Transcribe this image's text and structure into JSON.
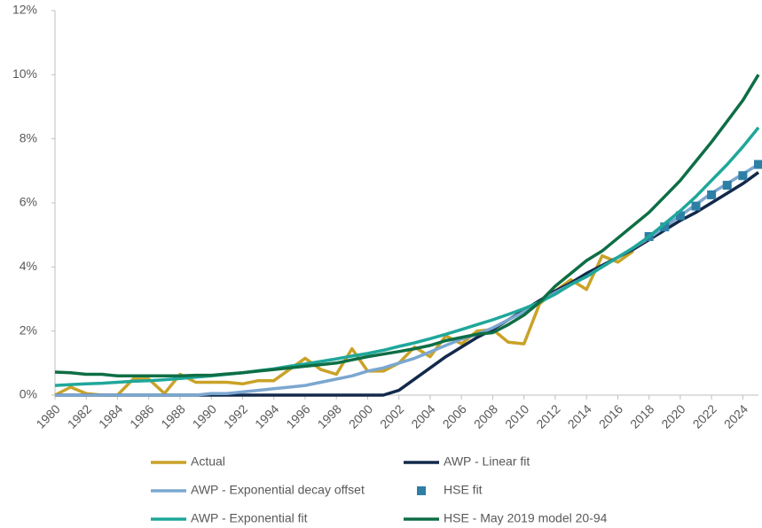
{
  "chart_data": {
    "type": "line",
    "x": [
      1980,
      1981,
      1982,
      1983,
      1984,
      1985,
      1986,
      1987,
      1988,
      1989,
      1990,
      1991,
      1992,
      1993,
      1994,
      1995,
      1996,
      1997,
      1998,
      1999,
      2000,
      2001,
      2002,
      2003,
      2004,
      2005,
      2006,
      2007,
      2008,
      2009,
      2010,
      2011,
      2012,
      2013,
      2014,
      2015,
      2016,
      2017,
      2018,
      2019,
      2020,
      2021,
      2022,
      2023,
      2024,
      2025
    ],
    "xlim": [
      1980,
      2025
    ],
    "xticks": [
      1980,
      1982,
      1984,
      1986,
      1988,
      1990,
      1992,
      1994,
      1996,
      1998,
      2000,
      2002,
      2004,
      2006,
      2008,
      2010,
      2012,
      2014,
      2016,
      2018,
      2020,
      2022,
      2024
    ],
    "ylim": [
      0,
      12
    ],
    "yticks": [
      {
        "value": 0,
        "label": "0%"
      },
      {
        "value": 2,
        "label": "2%"
      },
      {
        "value": 4,
        "label": "4%"
      },
      {
        "value": 6,
        "label": "6%"
      },
      {
        "value": 8,
        "label": "8%"
      },
      {
        "value": 10,
        "label": "10%"
      },
      {
        "value": 12,
        "label": "12%"
      }
    ],
    "grid": false,
    "legend": "bottom",
    "series": [
      {
        "name": "Actual",
        "color": "#c9a227",
        "style": "line",
        "values": [
          0,
          0.25,
          0.05,
          0,
          0,
          0.5,
          0.5,
          0.05,
          0.65,
          0.4,
          0.4,
          0.4,
          0.35,
          0.45,
          0.45,
          0.8,
          1.15,
          0.8,
          0.65,
          1.45,
          0.75,
          0.75,
          1.0,
          1.5,
          1.2,
          1.85,
          1.6,
          2.0,
          2.05,
          1.65,
          1.6,
          2.85,
          3.25,
          3.6,
          3.3,
          4.35,
          4.15,
          4.5,
          null,
          null,
          null,
          null,
          null,
          null,
          null,
          null
        ]
      },
      {
        "name": "AWP - Linear fit",
        "color": "#13294b",
        "style": "line",
        "values": [
          0,
          0,
          0,
          0,
          0,
          0,
          0,
          0,
          0,
          0,
          0,
          0,
          0,
          0,
          0,
          0,
          0,
          0,
          0,
          0,
          0,
          0,
          0.15,
          0.5,
          0.85,
          1.2,
          1.5,
          1.8,
          2.05,
          2.35,
          2.65,
          2.95,
          3.25,
          3.5,
          3.8,
          4.05,
          4.3,
          4.55,
          4.85,
          5.15,
          5.45,
          5.7,
          6.0,
          6.3,
          6.6,
          6.95
        ]
      },
      {
        "name": "AWP - Exponential decay offset",
        "color": "#7ba7d0",
        "style": "line",
        "values": [
          0,
          0,
          0,
          0,
          0,
          0,
          0,
          0,
          0,
          0,
          0.05,
          0.05,
          0.1,
          0.15,
          0.2,
          0.25,
          0.3,
          0.4,
          0.5,
          0.6,
          0.75,
          0.85,
          1.0,
          1.15,
          1.35,
          1.55,
          1.75,
          1.9,
          2.1,
          2.35,
          2.6,
          2.9,
          3.2,
          3.45,
          3.7,
          4.0,
          4.3,
          4.6,
          4.9,
          5.25,
          5.6,
          5.95,
          6.3,
          6.6,
          6.9,
          7.2
        ]
      },
      {
        "name": "HSE fit",
        "color": "#2e7fa6",
        "style": "markers",
        "values": [
          null,
          null,
          null,
          null,
          null,
          null,
          null,
          null,
          null,
          null,
          null,
          null,
          null,
          null,
          null,
          null,
          null,
          null,
          null,
          null,
          null,
          null,
          null,
          null,
          null,
          null,
          null,
          null,
          null,
          null,
          null,
          null,
          null,
          null,
          null,
          null,
          null,
          null,
          4.95,
          5.25,
          5.6,
          5.9,
          6.25,
          6.55,
          6.85,
          7.2
        ]
      },
      {
        "name": "AWP - Exponential fit",
        "color": "#1fa79a",
        "style": "line",
        "values": [
          0.3,
          0.33,
          0.35,
          0.37,
          0.4,
          0.43,
          0.45,
          0.48,
          0.52,
          0.56,
          0.6,
          0.65,
          0.7,
          0.76,
          0.82,
          0.9,
          0.97,
          1.05,
          1.13,
          1.22,
          1.3,
          1.4,
          1.52,
          1.63,
          1.76,
          1.9,
          2.05,
          2.2,
          2.35,
          2.52,
          2.7,
          2.9,
          3.15,
          3.45,
          3.7,
          4.0,
          4.3,
          4.6,
          4.95,
          5.35,
          5.75,
          6.2,
          6.7,
          7.2,
          7.75,
          8.35
        ]
      },
      {
        "name": "HSE - May 2019 model 20-94",
        "color": "#0e6e45",
        "style": "line",
        "values": [
          0.72,
          0.7,
          0.65,
          0.65,
          0.6,
          0.6,
          0.6,
          0.6,
          0.6,
          0.62,
          0.62,
          0.66,
          0.7,
          0.75,
          0.8,
          0.85,
          0.9,
          0.95,
          1.0,
          1.1,
          1.2,
          1.28,
          1.36,
          1.45,
          1.55,
          1.7,
          1.8,
          1.9,
          1.95,
          2.2,
          2.5,
          2.9,
          3.4,
          3.8,
          4.2,
          4.5,
          4.9,
          5.3,
          5.7,
          6.2,
          6.7,
          7.3,
          7.9,
          8.55,
          9.2,
          10.0
        ]
      }
    ]
  }
}
